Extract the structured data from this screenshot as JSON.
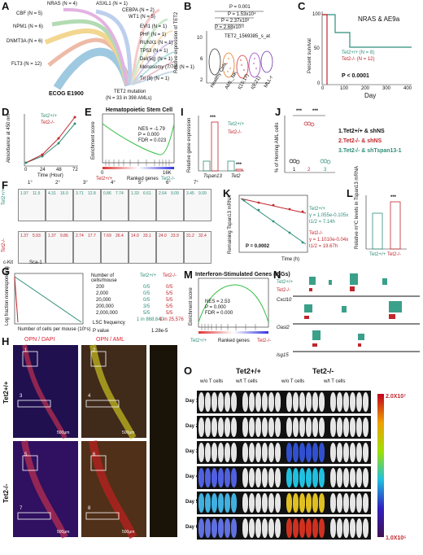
{
  "panels": [
    "A",
    "B",
    "C",
    "D",
    "E",
    "F",
    "G",
    "H",
    "I",
    "J",
    "K",
    "L",
    "M",
    "N",
    "O"
  ],
  "A": {
    "left_labels": [
      "CBF (N = 5)",
      "NPM1 (N = 6)",
      "DNMT3A (N = 6)",
      "FLT3 (N = 12)"
    ],
    "top_labels": [
      "NRAS (N = 4)",
      "ASXL1 (N = 1)",
      "CEBPA (N = 2)",
      "WT1 (N = 5)"
    ],
    "right_labels": [
      "EVI1 (N = 1)",
      "PHF (N = 1)",
      "RUNX1 (N = 1)",
      "TP53 (N = 1)",
      "Del(5q) (N = 1)",
      "Monosomy (7/7q) (N = 1)",
      "Tri (8) (N = 1)"
    ],
    "footer_left": "ECOG E1900",
    "footer_right_1": "TET2 mutation",
    "footer_right_2": "(N = 33 in 398 AMLs)"
  },
  "B": {
    "title": "TET2_1569385_s_at",
    "ylabel": "Relative expression of TET2",
    "pvals": [
      "P = 0.001",
      "P = 1.53x10⁴",
      "P = 2.37x10³",
      "P = 2.68x10¹¹"
    ],
    "categories": [
      "Healthy Ctrls",
      "AML_NK",
      "t(15;17)",
      "t(8;21)",
      "MLL-r"
    ],
    "yticks": [
      "2",
      "4",
      "6",
      "8",
      "10"
    ]
  },
  "C": {
    "title": "NRAS & AE9a",
    "ylabel": "Percent survival",
    "xlabel": "Day",
    "legend": [
      "Tet2+/+ (N = 8)",
      "Tet2-/- (N = 12)"
    ],
    "pval": "P < 0.0001",
    "yticks": [
      "0",
      "50",
      "100"
    ],
    "xticks": [
      "0",
      "100",
      "200",
      "300",
      "400"
    ]
  },
  "D": {
    "ylabel": "Absorbance at 450 nm",
    "xlabel": "Time (Hour)",
    "legend": [
      "Tet2+/+",
      "Tet2-/-"
    ],
    "xticks": [
      "0",
      "24",
      "48",
      "72"
    ],
    "yticks": [
      "0",
      "1",
      "2",
      "3"
    ]
  },
  "E": {
    "title": "Hematopoietic Stem Cell",
    "ylabel": "Enrichment score",
    "stats": [
      "NES = -1.79",
      "P = 0.000",
      "FDR = 0.023"
    ],
    "xlabel": "Ranked genes",
    "xticks": [
      "0",
      "4K",
      "8K",
      "12K",
      "16K"
    ],
    "left": "Tet2+/+",
    "right": "Tet2-/-"
  },
  "F": {
    "rounds": [
      "1°",
      "2°",
      "3°",
      "4°",
      "5°",
      "6°",
      "7°"
    ],
    "top_vals": [
      [
        "1.97",
        "11.5"
      ],
      [
        "4.31",
        "16.0"
      ],
      [
        "3.71",
        "12.8"
      ],
      [
        "0.86",
        "7.74"
      ],
      [
        "1.33",
        "6.61"
      ],
      [
        "2.64",
        "9.09"
      ],
      [
        "3.45",
        "9.09"
      ]
    ],
    "bottom_vals": [
      [
        "1.37",
        "5.93"
      ],
      [
        "1.37",
        "9.86"
      ],
      [
        "2.74",
        "17.7"
      ],
      [
        "7.69",
        "26.4"
      ],
      [
        "14.0",
        "33.1"
      ],
      [
        "24.0",
        "23.9"
      ],
      [
        "31.2",
        "32.4"
      ]
    ],
    "row_labels": [
      "Tet2+/+",
      "Tet2-/-"
    ],
    "x_axis": "Sca-1",
    "y_axis": "c-Kit",
    "lsk": "LSK",
    "lk": "LK"
  },
  "G": {
    "ylabel": "Log fraction nonresponding",
    "xlabel": "Number of cells per mouse (10⁵s)",
    "table_header": [
      "Number of cells/mouse",
      "Tet2+/+",
      "Tet2-/-"
    ],
    "rows": [
      [
        "200",
        "0/5",
        "0/5"
      ],
      [
        "2,000",
        "0/5",
        "5/5"
      ],
      [
        "20,000",
        "0/5",
        "5/5"
      ],
      [
        "200,000",
        "3/5",
        "5/5"
      ],
      [
        "2,000,000",
        "5/5",
        "5/5"
      ]
    ],
    "lsc_label": "LSC frequency",
    "lsc_vals": [
      "1 in 868,640",
      "1 in 25,576"
    ],
    "p_label": "P value",
    "p_val": "1.28e-5"
  },
  "H": {
    "stain1": "OPN / DAPI",
    "stain2": "OPN / AML",
    "rows": [
      "Tet2+/+",
      "Tet2-/-"
    ],
    "scale": "500μm",
    "nums": [
      "1",
      "2",
      "3",
      "4",
      "5",
      "6",
      "7",
      "8"
    ]
  },
  "I": {
    "ylabel": "Relative gene expression",
    "categories": [
      "Tspan13",
      "Tet2"
    ],
    "legend": [
      "Tet2+/+",
      "Tet2-/-"
    ],
    "sig": [
      "***",
      "***"
    ]
  },
  "J": {
    "ylabel": "% of Homing AML cells",
    "legend": [
      "1.Tet2+/+ & shNS",
      "2.Tet2-/- & shNS",
      "3.Tet2-/- & shTspan13-1"
    ],
    "sig": [
      "***",
      "***"
    ],
    "xticks": [
      "1",
      "2",
      "3"
    ]
  },
  "K": {
    "ylabel": "Remaining Tspan13 mRNA",
    "xlabel": "Time (h)",
    "pval": "P = 0.0002",
    "eq1": [
      "Tet2+/+",
      "y = 1.055e-0.105x",
      "t1/2 = 7.14h"
    ],
    "eq2": [
      "Tet2-/-",
      "y = 1.1010e-0.04x",
      "t1/2 = 19.67h"
    ]
  },
  "L": {
    "ylabel": "Relative m⁶C levels in Tspan13 mRNA",
    "categories": [
      "Tet2+/+",
      "Tet2-/-"
    ],
    "sig": "***"
  },
  "M": {
    "title": "Interferon-Stimulated Genes (ISGs)",
    "ylabel": "Enrichment score",
    "stats": [
      "NES = 2.53",
      "P = 0.000",
      "FDR = 0.000"
    ],
    "xlabel": "Ranked genes",
    "left": "Tet2+/+",
    "right": "Tet2-/-"
  },
  "N": {
    "genes": [
      "Cxcl10",
      "Oasl2",
      "Isg15"
    ],
    "row_labels": [
      "Tet2+/+",
      "Tet2-/-"
    ]
  },
  "O": {
    "group1": "Tet2+/+",
    "group2": "Tet2-/-",
    "sub": [
      "w/o T cells",
      "w/t T cells",
      "w/o T cells",
      "w/t T cells"
    ],
    "days": [
      "Day 15",
      "Day 26",
      "Day 37",
      "Day 43",
      "Day 57",
      "Day 64"
    ],
    "scale_max": "2.0X10⁷",
    "scale_min": "1.0X10⁵"
  },
  "colors": {
    "green": "#2f8f7a",
    "red": "#c0262d",
    "teal": "#3aa08a"
  }
}
